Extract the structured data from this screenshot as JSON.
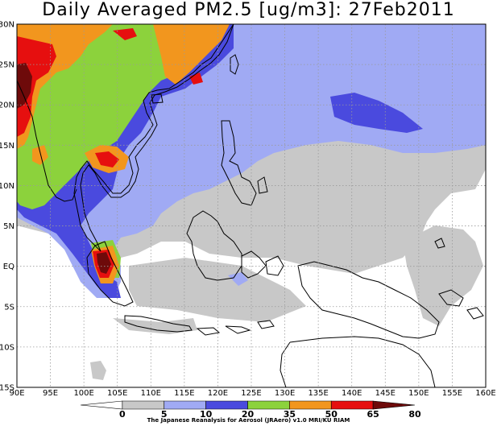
{
  "title": "Daily Averaged PM2.5 [ug/m3]: 27Feb2011",
  "map": {
    "longitude_labels": [
      "90E",
      "95E",
      "100E",
      "105E",
      "110E",
      "115E",
      "120E",
      "125E",
      "130E",
      "135E",
      "140E",
      "145E",
      "150E",
      "155E",
      "160E"
    ],
    "latitude_labels": [
      "30N",
      "25N",
      "20N",
      "15N",
      "10N",
      "5N",
      "EQ",
      "5S",
      "10S",
      "15S"
    ],
    "region": {
      "lon_min": 90,
      "lon_max": 160,
      "lat_min": -15,
      "lat_max": 30
    },
    "gridlines": "dotted",
    "colors": {
      "ocean": "#ffffff",
      "coastline": "#000000",
      "grid": "#9a9a9a"
    }
  },
  "colorbar": {
    "levels": [
      "0",
      "5",
      "10",
      "20",
      "35",
      "50",
      "65",
      "80"
    ],
    "colors": [
      "#ffffff",
      "#c8c8c8",
      "#a0aaf4",
      "#4a4ade",
      "#8cd23c",
      "#f2961e",
      "#e60f0f",
      "#6e0a0a"
    ],
    "credit": "The Japanese Reanalysis for Aerosol (JRAero) v1.0 MRI/KU RIAM"
  }
}
